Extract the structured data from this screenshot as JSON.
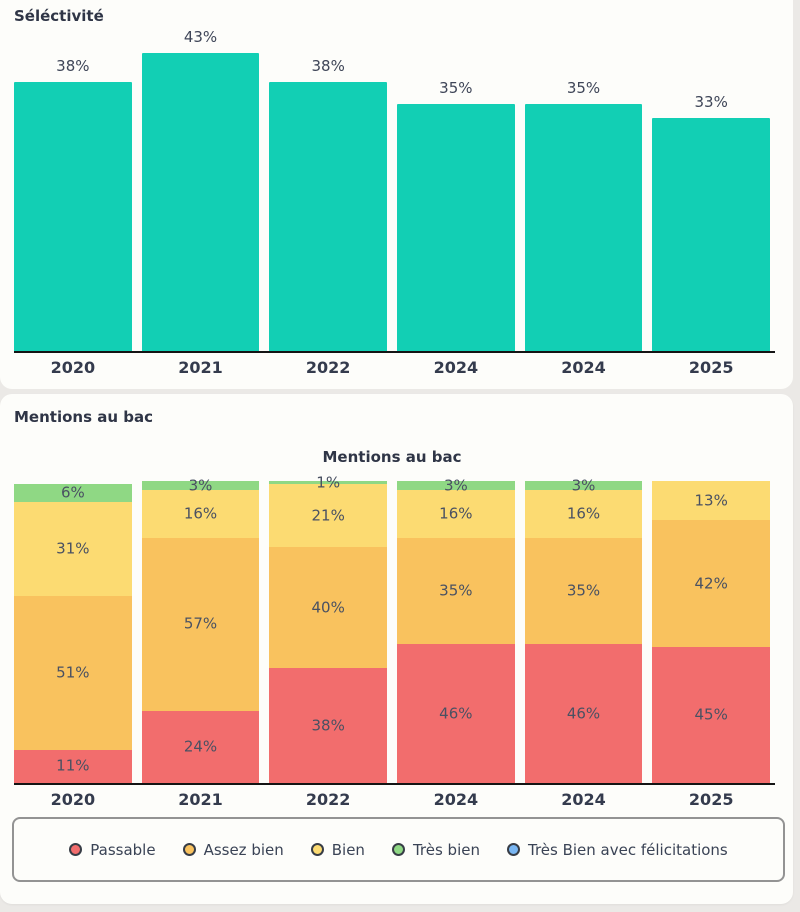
{
  "page": {
    "background": "#ebe9e6",
    "card_background": "#fdfdfa"
  },
  "selectivity": {
    "section_title": "Séléctivité"
  },
  "mentions": {
    "section_title": "Mentions au bac",
    "plot_title": "Mentions au bac"
  },
  "chart_data": [
    {
      "type": "bar",
      "title": "Séléctivité",
      "categories": [
        "2020",
        "2021",
        "2022",
        "2024",
        "2024",
        "2025"
      ],
      "values": [
        38,
        43,
        38,
        35,
        35,
        33
      ],
      "value_suffix": "%",
      "bar_color": "#12cfb4",
      "xlabel": "",
      "ylabel": "",
      "ylim": [
        0,
        43
      ],
      "grid": false,
      "legend": false
    },
    {
      "type": "bar",
      "subtype": "stacked",
      "title": "Mentions au bac",
      "categories": [
        "2020",
        "2021",
        "2022",
        "2024",
        "2024",
        "2025"
      ],
      "series": [
        {
          "name": "Passable",
          "color": "#f26d6d",
          "values": [
            11,
            24,
            38,
            46,
            46,
            45
          ]
        },
        {
          "name": "Assez bien",
          "color": "#f9c25e",
          "values": [
            51,
            57,
            40,
            35,
            35,
            42
          ]
        },
        {
          "name": "Bien",
          "color": "#fcdb72",
          "values": [
            31,
            16,
            21,
            16,
            16,
            13
          ]
        },
        {
          "name": "Très bien",
          "color": "#8fd884",
          "values": [
            6,
            3,
            1,
            3,
            3,
            0
          ]
        },
        {
          "name": "Très Bien avec félicitations",
          "color": "#79b6f2",
          "values": [
            0,
            0,
            0,
            0,
            0,
            0
          ]
        }
      ],
      "value_suffix": "%",
      "xlabel": "",
      "ylabel": "",
      "ylim": [
        0,
        100
      ],
      "grid": false,
      "legend_position": "bottom"
    }
  ]
}
